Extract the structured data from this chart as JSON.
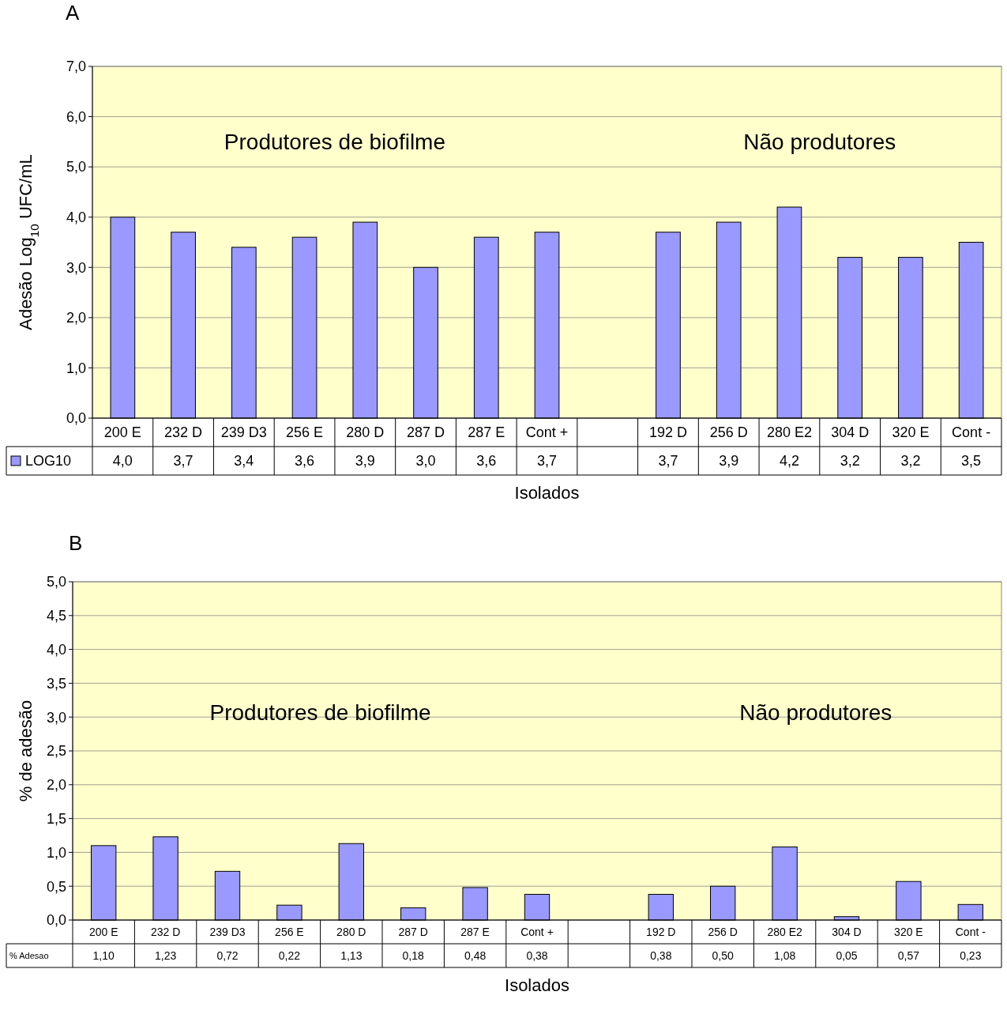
{
  "chart_data": [
    {
      "type": "bar",
      "title": "A",
      "ylabel": "Adesão Log$_{10}$ UFC/mL",
      "xlabel": "Isolados",
      "annotations": [
        "Produtores de biofilme",
        "Não produtores"
      ],
      "categories": [
        "200 E",
        "232 D",
        "239 D3",
        "256 E",
        "280 D",
        "287 D",
        "287 E",
        "Cont +",
        null,
        "192 D",
        "256 D",
        "280 E2",
        "304 D",
        "320 E",
        "Cont -"
      ],
      "series": [
        {
          "name": "LOG10",
          "color": "#9999ff",
          "values": [
            4.0,
            3.7,
            3.4,
            3.6,
            3.9,
            3.0,
            3.6,
            3.7,
            null,
            3.7,
            3.9,
            4.2,
            3.2,
            3.2,
            3.5
          ],
          "value_labels": [
            "4,0",
            "3,7",
            "3,4",
            "3,6",
            "3,9",
            "3,0",
            "3,6",
            "3,7",
            null,
            "3,7",
            "3,9",
            "4,2",
            "3,2",
            "3,2",
            "3,5"
          ]
        }
      ],
      "ylim": [
        0,
        7
      ],
      "yticks": [
        {
          "value": 0,
          "label": "0,0"
        },
        {
          "value": 1,
          "label": "1,0"
        },
        {
          "value": 2,
          "label": "2,0"
        },
        {
          "value": 3,
          "label": "3,0"
        },
        {
          "value": 4,
          "label": "4,0"
        },
        {
          "value": 5,
          "label": "5,0"
        },
        {
          "value": 6,
          "label": "6,0"
        },
        {
          "value": 7,
          "label": "7,0"
        }
      ],
      "grid": "y",
      "legend": "bottom left"
    },
    {
      "type": "bar",
      "title": "B",
      "ylabel": "% de adesão",
      "xlabel": "Isolados",
      "annotations": [
        "Produtores de biofilme",
        "Não produtores"
      ],
      "categories": [
        "200 E",
        "232 D",
        "239 D3",
        "256 E",
        "280 D",
        "287 D",
        "287 E",
        "Cont +",
        null,
        "192 D",
        "256 D",
        "280 E2",
        "304 D",
        "320 E",
        "Cont -"
      ],
      "series": [
        {
          "name": "% Adesao",
          "color": "#9999ff",
          "values": [
            1.1,
            1.23,
            0.72,
            0.22,
            1.13,
            0.18,
            0.48,
            0.38,
            null,
            0.38,
            0.5,
            1.08,
            0.05,
            0.57,
            0.23
          ],
          "value_labels": [
            "1,10",
            "1,23",
            "0,72",
            "0,22",
            "1,13",
            "0,18",
            "0,48",
            "0,38",
            null,
            "0,38",
            "0,50",
            "1,08",
            "0,05",
            "0,57",
            "0,23"
          ]
        }
      ],
      "ylim": [
        0,
        5
      ],
      "yticks": [
        {
          "value": 0,
          "label": "0,0"
        },
        {
          "value": 0.5,
          "label": "0,5"
        },
        {
          "value": 1,
          "label": "1,0"
        },
        {
          "value": 1.5,
          "label": "1,5"
        },
        {
          "value": 2,
          "label": "2,0"
        },
        {
          "value": 2.5,
          "label": "2,5"
        },
        {
          "value": 3,
          "label": "3,0"
        },
        {
          "value": 3.5,
          "label": "3,5"
        },
        {
          "value": 4,
          "label": "4,0"
        },
        {
          "value": 4.5,
          "label": "4,5"
        },
        {
          "value": 5,
          "label": "5,0"
        }
      ],
      "grid": "y"
    }
  ]
}
